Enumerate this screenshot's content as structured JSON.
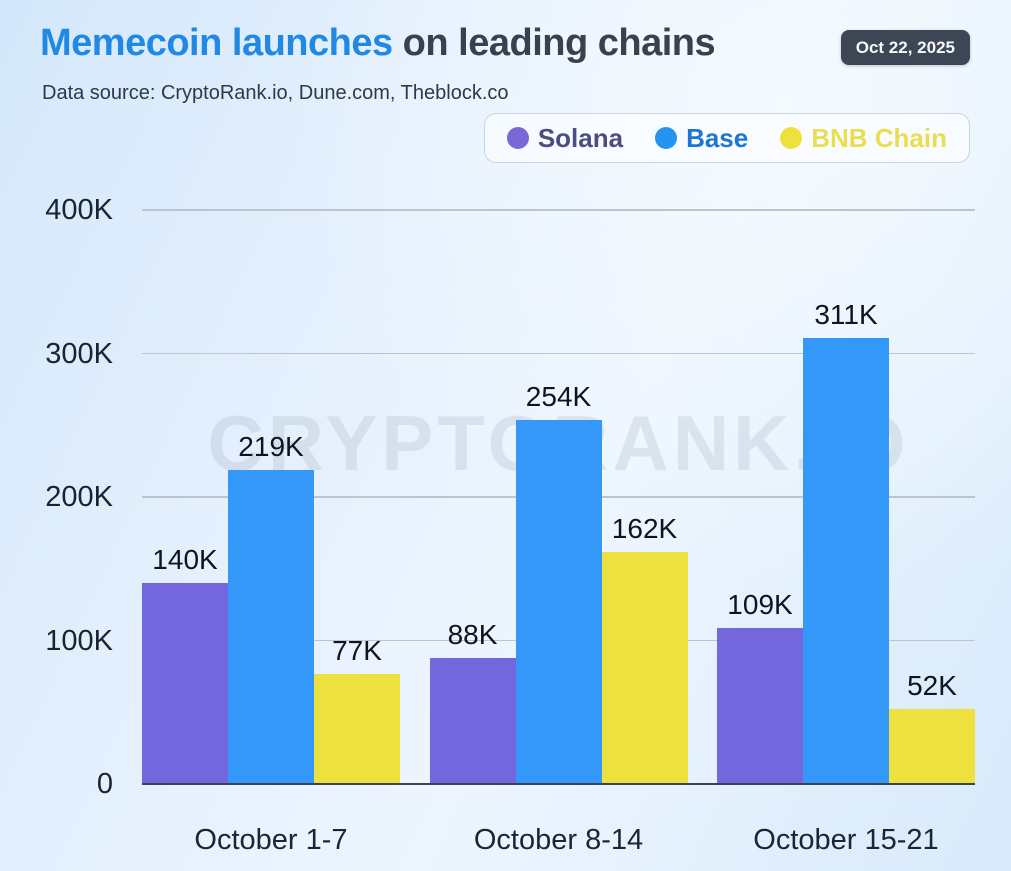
{
  "header": {
    "title_highlight": "Memecoin launches",
    "title_rest": " on leading chains",
    "date_badge": "Oct 22, 2025",
    "data_source": "Data source: CryptoRank.io, Dune.com, Theblock.co"
  },
  "legend": {
    "items": [
      {
        "label": "Solana",
        "dot_color": "#7b67d8",
        "text_color": "#4c4e7d"
      },
      {
        "label": "Base",
        "dot_color": "#2493f2",
        "text_color": "#1c77d2"
      },
      {
        "label": "BNB Chain",
        "dot_color": "#efe13c",
        "text_color": "#e9de52"
      }
    ]
  },
  "watermark": "CRYPTORANK.IO",
  "chart_data": {
    "type": "bar",
    "title": "Memecoin launches on leading chains",
    "subtitle": "Data source: CryptoRank.io, Dune.com, Theblock.co",
    "categories": [
      "October 1-7",
      "October 8-14",
      "October 15-21"
    ],
    "series": [
      {
        "name": "Solana",
        "color": "#7467dd",
        "values": [
          140000,
          88000,
          109000
        ],
        "labels": [
          "140K",
          "88K",
          "109K"
        ]
      },
      {
        "name": "Base",
        "color": "#3398f8",
        "values": [
          219000,
          254000,
          311000
        ],
        "labels": [
          "219K",
          "254K",
          "311K"
        ]
      },
      {
        "name": "BNB Chain",
        "color": "#ece13e",
        "values": [
          77000,
          162000,
          52000
        ],
        "labels": [
          "77K",
          "162K",
          "52K"
        ]
      }
    ],
    "xlabel": "",
    "ylabel": "",
    "ylim": [
      0,
      400000
    ],
    "yticks": [
      {
        "value": 0,
        "label": "0"
      },
      {
        "value": 100000,
        "label": "100K"
      },
      {
        "value": 200000,
        "label": "200K"
      },
      {
        "value": 300000,
        "label": "300K"
      },
      {
        "value": 400000,
        "label": "400K"
      }
    ],
    "grid": true,
    "legend_position": "top-right"
  }
}
